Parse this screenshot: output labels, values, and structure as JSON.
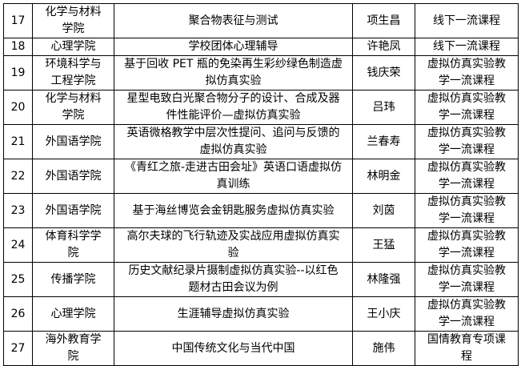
{
  "rows": [
    {
      "no": "17",
      "college": "化学与材料\n学院",
      "course": "聚合物表征与测试",
      "teacher": "项生昌",
      "category": "线下一流课程"
    },
    {
      "no": "18",
      "college": "心理学院",
      "course": "学校团体心理辅导",
      "teacher": "许艳凤",
      "category": "线下一流课程"
    },
    {
      "no": "19",
      "college": "环境科学与\n工程学院",
      "course": "基于回收 PET 瓶的免染再生彩纱绿色制造虚\n拟仿真实验",
      "teacher": "钱庆荣",
      "category": "虚拟仿真实验教\n学一流课程"
    },
    {
      "no": "20",
      "college": "化学与材料\n学院",
      "course": "星型电致白光聚合物分子的设计、合成及器\n件性能评价—虚拟仿真实验",
      "teacher": "吕玮",
      "category": "虚拟仿真实验教\n学一流课程"
    },
    {
      "no": "21",
      "college": "外国语学院",
      "course": "英语微格教学中层次性提问、追问与反馈的\n虚拟仿真实验",
      "teacher": "兰春寿",
      "category": "虚拟仿真实验教\n学一流课程"
    },
    {
      "no": "22",
      "college": "外国语学院",
      "course": "《青红之旅-走进古田会址》英语口语虚拟仿\n真训练",
      "teacher": "林明金",
      "category": "虚拟仿真实验教\n学一流课程"
    },
    {
      "no": "23",
      "college": "外国语学院",
      "course": "基于海丝博览会金钥匙服务虚拟仿真实验",
      "teacher": "刘茵",
      "category": "虚拟仿真实验教\n学一流课程"
    },
    {
      "no": "24",
      "college": "体育科学学\n院",
      "course": "高尔夫球的飞行轨迹及实战应用虚拟仿真实\n验",
      "teacher": "王猛",
      "category": "虚拟仿真实验教\n学一流课程"
    },
    {
      "no": "25",
      "college": "传播学院",
      "course": "历史文献纪录片摄制虚拟仿真实验--以红色\n题材古田会议为例",
      "teacher": "林隆强",
      "category": "虚拟仿真实验教\n学一流课程"
    },
    {
      "no": "26",
      "college": "心理学院",
      "course": "生涯辅导虚拟仿真实验",
      "teacher": "王小庆",
      "category": "虚拟仿真实验教\n学一流课程"
    },
    {
      "no": "27",
      "college": "海外教育学\n院",
      "course": "中国传统文化与当代中国",
      "teacher": "施伟",
      "category": "国情教育专项课\n程"
    }
  ]
}
